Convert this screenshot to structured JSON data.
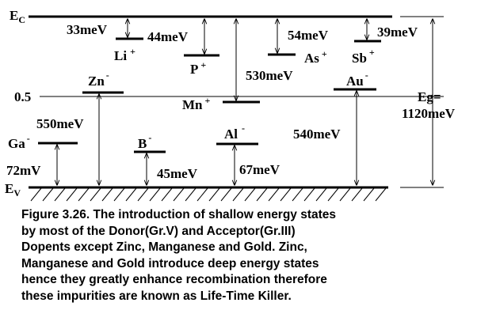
{
  "bands": {
    "ec_main": "E",
    "ec_sub": "C",
    "ev_main": "E",
    "ev_sub": "V",
    "mid_label": "0.5",
    "gap_label_1": "Eg=",
    "gap_label_2": "1120meV"
  },
  "donors": [
    {
      "name": "Li",
      "charge": "+",
      "energy": "33meV"
    },
    {
      "name": "P",
      "charge": "+",
      "energy": "44meV"
    },
    {
      "name": "Mn",
      "charge": "+",
      "energy": "530meV"
    },
    {
      "name": "As",
      "charge": "+",
      "energy": "54meV"
    },
    {
      "name": "Sb",
      "charge": "+",
      "energy": "39meV"
    }
  ],
  "acceptors": [
    {
      "name": "Ga",
      "charge": "-",
      "energy": "72mV"
    },
    {
      "name": "Zn",
      "charge": "-",
      "energy": "550meV"
    },
    {
      "name": "B",
      "charge": "-",
      "energy": "45meV"
    },
    {
      "name": "Al",
      "charge": "-",
      "energy": "67meV"
    },
    {
      "name": "Au",
      "charge": "-",
      "energy": "540meV"
    }
  ],
  "caption": [
    "Figure 3.26. The introduction of shallow energy states",
    "by most of the Donor(Gr.V) and Acceptor(Gr.III)",
    "Dopents except Zinc, Manganese and Gold. Zinc,",
    "Manganese and Gold introduce deep energy states",
    "hence they greatly enhance recombination therefore",
    "these impurities are known as Life-Time Killer."
  ]
}
